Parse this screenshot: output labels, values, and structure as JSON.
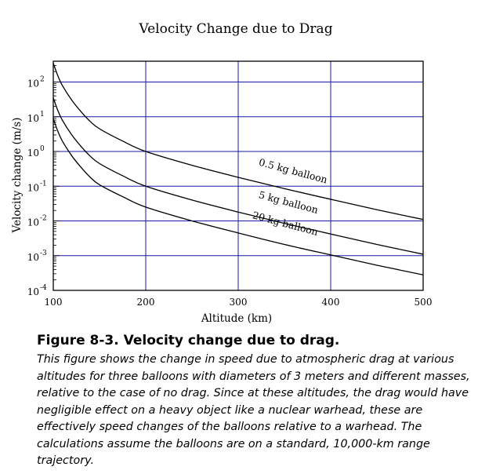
{
  "chart_data": {
    "type": "line",
    "title": "Velocity Change due to Drag",
    "xlabel": "Altitude (km)",
    "ylabel": "Velocity change (m/s)",
    "xlim": [
      100,
      500
    ],
    "ylim_log10": [
      -4,
      2.6
    ],
    "y_scale": "log",
    "grid": true,
    "x_ticks": [
      {
        "value": 100,
        "label": "100"
      },
      {
        "value": 200,
        "label": "200"
      },
      {
        "value": 300,
        "label": "300"
      },
      {
        "value": 400,
        "label": "400"
      },
      {
        "value": 500,
        "label": "500"
      }
    ],
    "y_ticks": [
      {
        "exp": 2,
        "base": "10",
        "sup": "2"
      },
      {
        "exp": 1,
        "base": "10",
        "sup": "1"
      },
      {
        "exp": 0,
        "base": "10",
        "sup": "0"
      },
      {
        "exp": -1,
        "base": "10",
        "sup": "-1"
      },
      {
        "exp": -2,
        "base": "10",
        "sup": "-2"
      },
      {
        "exp": -3,
        "base": "10",
        "sup": "-3"
      },
      {
        "exp": -4,
        "base": "10",
        "sup": "-4"
      }
    ],
    "series": [
      {
        "name": "0.5 kg balloon",
        "x": [
          100,
          105,
          110,
          120,
          130,
          140,
          150,
          175,
          200,
          250,
          300,
          350,
          400,
          450,
          500
        ],
        "values": [
          350,
          150,
          78,
          30,
          14,
          7.3,
          4.5,
          2.0,
          1.0,
          0.4,
          0.18,
          0.085,
          0.042,
          0.021,
          0.011
        ]
      },
      {
        "name": "5 kg balloon",
        "x": [
          100,
          105,
          110,
          120,
          130,
          140,
          150,
          175,
          200,
          250,
          300,
          350,
          400,
          450,
          500
        ],
        "values": [
          35,
          15,
          7.8,
          3.0,
          1.4,
          0.73,
          0.45,
          0.2,
          0.1,
          0.04,
          0.018,
          0.0085,
          0.0042,
          0.0021,
          0.0011
        ]
      },
      {
        "name": "20 kg balloon",
        "x": [
          100,
          105,
          110,
          120,
          130,
          140,
          150,
          175,
          200,
          250,
          300,
          350,
          400,
          450,
          500
        ],
        "values": [
          8.8,
          3.8,
          1.95,
          0.75,
          0.35,
          0.18,
          0.11,
          0.05,
          0.025,
          0.01,
          0.0045,
          0.0021,
          0.00105,
          0.00053,
          0.00028
        ]
      }
    ]
  },
  "caption": {
    "title": "Figure 8-3.  Velocity change due to drag.",
    "body": "This figure shows the change in speed due to atmospheric drag at various altitudes for three balloons with diameters of 3 meters and different masses, relative to the case of no drag. Since at these altitudes, the drag would have negligible effect on a heavy object like a nuclear warhead, these are effectively speed changes of the balloons relative to a warhead. The calculations assume the balloons are on a standard, 10,000-km range trajectory."
  }
}
